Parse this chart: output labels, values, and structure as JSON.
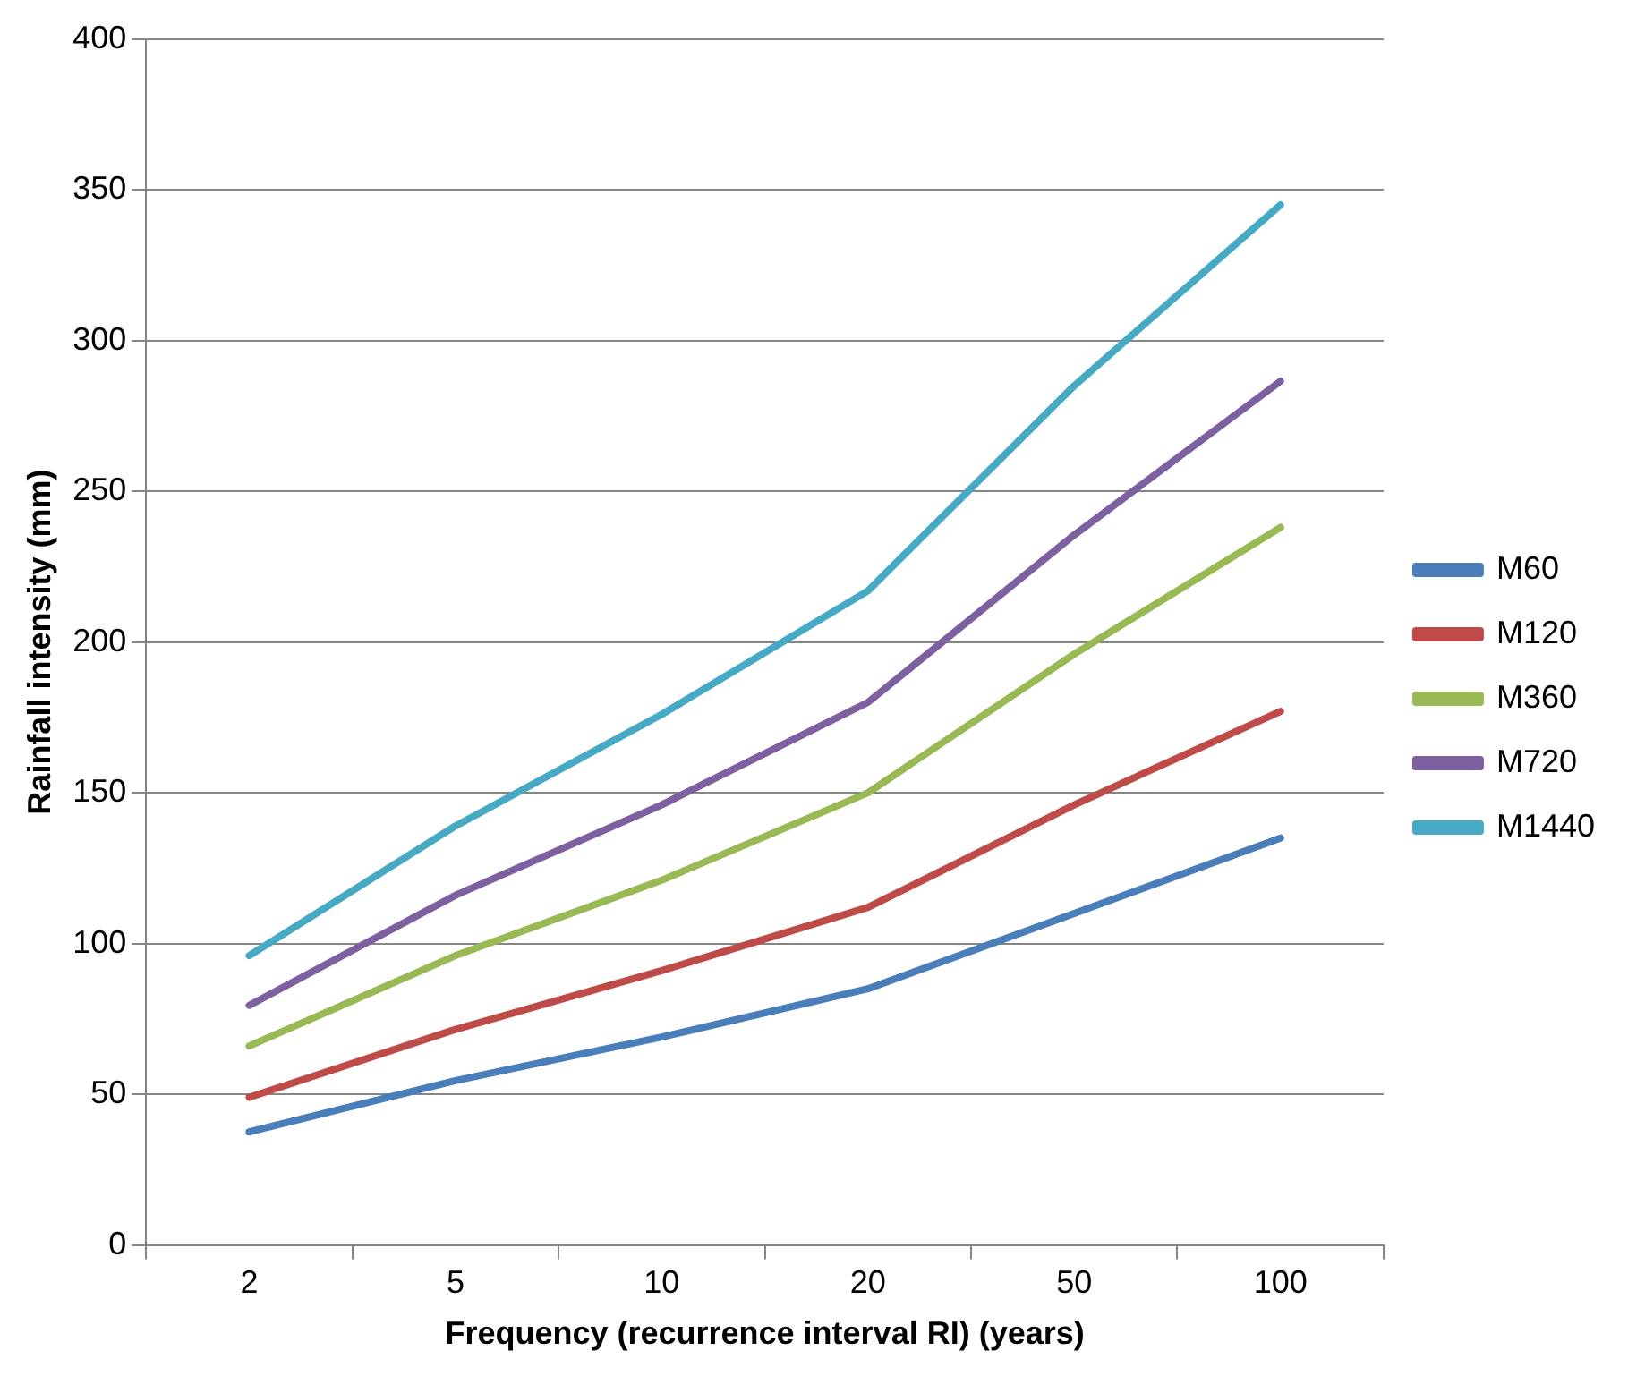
{
  "chart_data": {
    "type": "line",
    "xlabel": "Frequency (recurrence interval RI) (years)",
    "ylabel": "Rainfall intensity (mm)",
    "categories": [
      "2",
      "5",
      "10",
      "20",
      "50",
      "100"
    ],
    "series": [
      {
        "name": "M60",
        "color": "#4a7ebb",
        "values": [
          37.5,
          54.5,
          69,
          85,
          110,
          135
        ]
      },
      {
        "name": "M120",
        "color": "#be4b48",
        "values": [
          49,
          71.5,
          91,
          112,
          146,
          177
        ]
      },
      {
        "name": "M360",
        "color": "#98b954",
        "values": [
          66,
          96,
          121,
          150,
          196,
          238
        ]
      },
      {
        "name": "M720",
        "color": "#7d60a0",
        "values": [
          79.5,
          116,
          146,
          180,
          235.5,
          286.5
        ]
      },
      {
        "name": "M1440",
        "color": "#46aac5",
        "values": [
          96,
          139,
          176,
          217,
          285,
          345
        ]
      }
    ],
    "ylim": [
      0,
      400
    ],
    "yticks": [
      0,
      50,
      100,
      150,
      200,
      250,
      300,
      350,
      400
    ],
    "grid": "y",
    "legend": "right",
    "marker": "none",
    "line_style": "solid"
  }
}
